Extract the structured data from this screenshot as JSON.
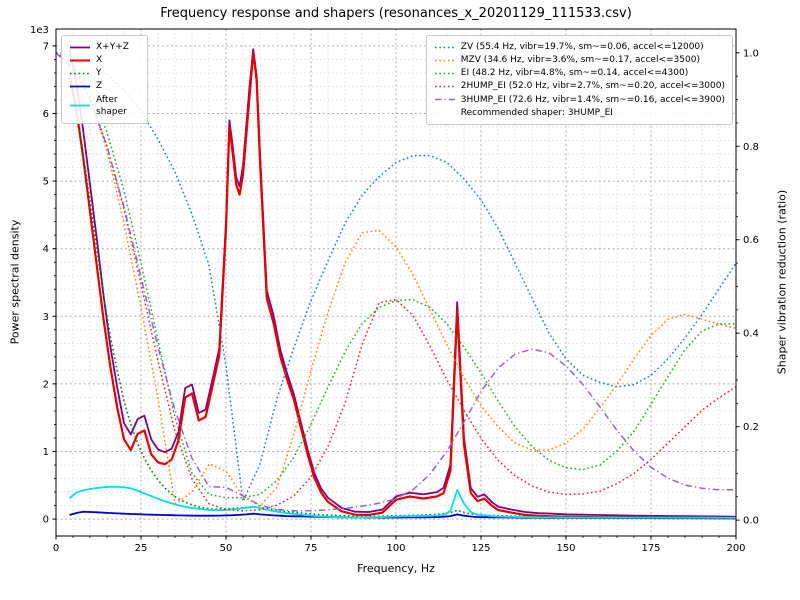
{
  "chart_data": {
    "type": "line",
    "title": "Frequency response and shapers (resonances_x_20201129_111533.csv)",
    "xlabel": "Frequency, Hz",
    "ylabel_left": "Power spectral density",
    "ylabel_right": "Shaper vibration reduction (ratio)",
    "offset_text": "1e3",
    "xlim": [
      0,
      200
    ],
    "ylim_left": [
      0,
      7000
    ],
    "ylim_right": [
      0,
      1.0
    ],
    "grid": "major+minor",
    "legend_note": "Recommended shaper: 3HUMP_EI",
    "x_ticks": {
      "values": [
        0,
        25,
        50,
        75,
        100,
        125,
        150,
        175,
        200
      ],
      "labels": [
        "0",
        "25",
        "50",
        "75",
        "100",
        "125",
        "150",
        "175",
        "200"
      ]
    },
    "y_left_ticks": {
      "values": [
        0,
        1000,
        2000,
        3000,
        4000,
        5000,
        6000,
        7000
      ],
      "labels": [
        "0",
        "1",
        "2",
        "3",
        "4",
        "5",
        "6",
        "7"
      ]
    },
    "y_right_ticks": {
      "values": [
        0,
        0.2,
        0.4,
        0.6,
        0.8,
        1.0
      ],
      "labels": [
        "0.0",
        "0.2",
        "0.4",
        "0.6",
        "0.8",
        "1.0"
      ]
    },
    "psd_x": [
      4,
      6,
      8,
      10,
      12,
      14,
      16,
      18,
      20,
      22,
      24,
      26,
      28,
      30,
      32,
      34,
      36,
      38,
      40,
      42,
      44,
      46,
      48,
      50,
      51,
      52,
      53,
      54,
      55,
      56,
      57,
      58,
      59,
      60,
      62,
      64,
      66,
      68,
      70,
      72,
      74,
      76,
      78,
      80,
      84,
      88,
      92,
      96,
      100,
      104,
      108,
      112,
      114,
      116,
      118,
      120,
      122,
      124,
      126,
      128,
      130,
      134,
      138,
      142,
      146,
      150,
      160,
      170,
      180,
      190,
      200
    ],
    "psd_series": [
      {
        "name": "xyz",
        "label": "X+Y+Z",
        "color": "#800080",
        "style": "solid",
        "width": 1.8,
        "y": [
          6950,
          6450,
          5750,
          4950,
          4150,
          3300,
          2550,
          1950,
          1420,
          1250,
          1480,
          1530,
          1180,
          1030,
          990,
          1040,
          1290,
          1940,
          1990,
          1570,
          1620,
          2060,
          2520,
          4400,
          5900,
          5510,
          5060,
          4920,
          5230,
          5840,
          6440,
          6950,
          6560,
          5420,
          3380,
          3010,
          2500,
          2150,
          1840,
          1430,
          1030,
          680,
          450,
          315,
          165,
          110,
          105,
          140,
          335,
          390,
          365,
          400,
          465,
          805,
          3210,
          1200,
          460,
          330,
          365,
          260,
          185,
          140,
          105,
          88,
          80,
          71,
          60,
          51,
          46,
          41,
          37
        ]
      },
      {
        "name": "x",
        "label": "X",
        "color": "#e50000",
        "style": "solid",
        "width": 2.2,
        "y": [
          6550,
          6050,
          5350,
          4550,
          3750,
          2950,
          2250,
          1650,
          1180,
          1020,
          1260,
          1310,
          960,
          840,
          810,
          880,
          1160,
          1800,
          1860,
          1460,
          1510,
          1960,
          2420,
          4300,
          5800,
          5400,
          4950,
          4800,
          5100,
          5700,
          6300,
          6900,
          6500,
          5300,
          3260,
          2900,
          2400,
          2060,
          1760,
          1360,
          960,
          610,
          390,
          255,
          115,
          65,
          62,
          95,
          285,
          335,
          305,
          335,
          385,
          710,
          3080,
          1100,
          385,
          265,
          305,
          205,
          135,
          95,
          62,
          48,
          42,
          36,
          28,
          23,
          20,
          17,
          15
        ]
      },
      {
        "name": "y",
        "label": "Y",
        "color": "#008000",
        "style": "dotted",
        "width": 1.6,
        "y": [
          6600,
          6100,
          5400,
          4700,
          4000,
          3300,
          2700,
          2200,
          1750,
          1400,
          1120,
          900,
          720,
          580,
          460,
          370,
          300,
          250,
          210,
          180,
          160,
          150,
          145,
          150,
          155,
          158,
          160,
          165,
          170,
          175,
          180,
          185,
          180,
          170,
          155,
          140,
          125,
          110,
          100,
          90,
          80,
          72,
          65,
          58,
          50,
          45,
          42,
          45,
          50,
          55,
          60,
          70,
          80,
          95,
          130,
          100,
          75,
          65,
          60,
          55,
          50,
          45,
          42,
          40,
          38,
          35,
          32,
          28,
          26,
          24,
          22
        ]
      },
      {
        "name": "z",
        "label": "Z",
        "color": "#0000cd",
        "style": "solid",
        "width": 1.8,
        "y": [
          60,
          90,
          110,
          105,
          100,
          95,
          90,
          85,
          80,
          76,
          72,
          68,
          65,
          62,
          60,
          57,
          55,
          53,
          52,
          51,
          50,
          51,
          52,
          55,
          56,
          58,
          60,
          63,
          66,
          70,
          75,
          80,
          75,
          70,
          62,
          55,
          50,
          45,
          42,
          40,
          37,
          35,
          32,
          30,
          27,
          25,
          23,
          22,
          23,
          25,
          27,
          30,
          35,
          45,
          70,
          50,
          38,
          30,
          28,
          26,
          25,
          23,
          21,
          20,
          19,
          18,
          16,
          15,
          14,
          13,
          12
        ]
      },
      {
        "name": "after-shaper",
        "label": "After shaper",
        "color": "#00e0e0",
        "style": "solid",
        "width": 1.8,
        "y": [
          310,
          390,
          425,
          445,
          460,
          470,
          478,
          480,
          470,
          455,
          420,
          380,
          340,
          300,
          262,
          232,
          205,
          182,
          165,
          152,
          140,
          132,
          130,
          138,
          142,
          146,
          150,
          156,
          162,
          168,
          174,
          180,
          174,
          162,
          138,
          118,
          100,
          88,
          76,
          66,
          56,
          48,
          40,
          34,
          27,
          24,
          25,
          30,
          38,
          44,
          46,
          52,
          62,
          120,
          430,
          230,
          105,
          62,
          55,
          45,
          38,
          32,
          28,
          26,
          25,
          24,
          22,
          21,
          20,
          20,
          19
        ]
      }
    ],
    "shaper_x": [
      0,
      5,
      10,
      15,
      20,
      25,
      30,
      35,
      40,
      45,
      50,
      55,
      60,
      65,
      70,
      75,
      80,
      85,
      90,
      95,
      100,
      105,
      110,
      115,
      120,
      125,
      130,
      135,
      140,
      145,
      150,
      155,
      160,
      165,
      170,
      175,
      180,
      185,
      190,
      195,
      200
    ],
    "shaper_series": [
      {
        "name": "zv",
        "label": "ZV (55.4 Hz, vibr=19.7%, sm~=0.06, accel<=12000)",
        "color": "#1f77b4",
        "style": "dotted",
        "width": 1.5,
        "y": [
          1.0,
          0.995,
          0.98,
          0.955,
          0.92,
          0.875,
          0.815,
          0.745,
          0.655,
          0.545,
          0.33,
          0.04,
          0.12,
          0.26,
          0.37,
          0.47,
          0.555,
          0.635,
          0.695,
          0.735,
          0.765,
          0.78,
          0.78,
          0.765,
          0.73,
          0.685,
          0.625,
          0.55,
          0.475,
          0.4,
          0.345,
          0.31,
          0.295,
          0.285,
          0.29,
          0.31,
          0.345,
          0.39,
          0.44,
          0.495,
          0.55
        ]
      },
      {
        "name": "mzv",
        "label": "MZV (34.6 Hz, vibr=3.6%, sm~=0.17, accel<=3500)",
        "color": "#ff7f0e",
        "style": "dotted",
        "width": 1.5,
        "y": [
          1.0,
          0.975,
          0.905,
          0.79,
          0.635,
          0.455,
          0.26,
          0.035,
          0.06,
          0.12,
          0.105,
          0.05,
          0.03,
          0.07,
          0.185,
          0.32,
          0.445,
          0.55,
          0.615,
          0.62,
          0.585,
          0.525,
          0.45,
          0.375,
          0.305,
          0.245,
          0.2,
          0.165,
          0.15,
          0.15,
          0.165,
          0.195,
          0.24,
          0.29,
          0.345,
          0.395,
          0.43,
          0.44,
          0.43,
          0.42,
          0.41
        ]
      },
      {
        "name": "ei",
        "label": "EI (48.2 Hz, vibr=4.8%, sm~=0.14, accel<=4300)",
        "color": "#2ca02c",
        "style": "dotted",
        "width": 1.5,
        "y": [
          1.0,
          0.975,
          0.92,
          0.83,
          0.705,
          0.55,
          0.385,
          0.22,
          0.1,
          0.055,
          0.048,
          0.048,
          0.055,
          0.085,
          0.135,
          0.205,
          0.285,
          0.36,
          0.42,
          0.455,
          0.47,
          0.472,
          0.455,
          0.42,
          0.37,
          0.315,
          0.255,
          0.2,
          0.158,
          0.128,
          0.112,
          0.108,
          0.118,
          0.148,
          0.19,
          0.248,
          0.308,
          0.365,
          0.405,
          0.42,
          0.42
        ]
      },
      {
        "name": "2hump-ei",
        "label": "2HUMP_EI (52.0 Hz, vibr=2.7%, sm~=0.20, accel<=3000)",
        "color": "#d62728",
        "style": "dotted",
        "width": 1.5,
        "y": [
          1.0,
          0.97,
          0.905,
          0.8,
          0.665,
          0.505,
          0.34,
          0.19,
          0.088,
          0.035,
          0.022,
          0.02,
          0.022,
          0.032,
          0.052,
          0.092,
          0.158,
          0.25,
          0.375,
          0.465,
          0.472,
          0.438,
          0.372,
          0.3,
          0.235,
          0.175,
          0.128,
          0.095,
          0.073,
          0.06,
          0.055,
          0.056,
          0.062,
          0.078,
          0.1,
          0.13,
          0.165,
          0.2,
          0.235,
          0.262,
          0.285
        ]
      },
      {
        "name": "3hump-ei",
        "label": "3HUMP_EI (72.6 Hz, vibr=1.4%, sm~=0.16, accel<=3900)",
        "color": "#9467bd",
        "style": "dashdot",
        "width": 1.5,
        "y": [
          1.0,
          0.965,
          0.9,
          0.8,
          0.67,
          0.52,
          0.37,
          0.235,
          0.132,
          0.072,
          0.07,
          0.052,
          0.032,
          0.023,
          0.02,
          0.02,
          0.022,
          0.025,
          0.03,
          0.036,
          0.046,
          0.065,
          0.098,
          0.148,
          0.21,
          0.275,
          0.325,
          0.355,
          0.366,
          0.358,
          0.33,
          0.29,
          0.242,
          0.192,
          0.148,
          0.113,
          0.09,
          0.075,
          0.068,
          0.065,
          0.065
        ]
      }
    ]
  }
}
